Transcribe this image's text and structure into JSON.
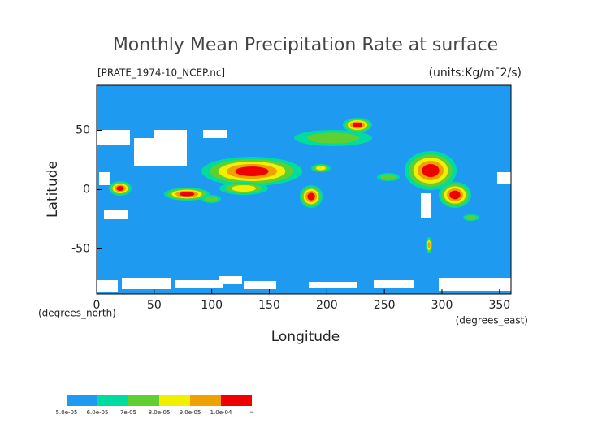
{
  "chart_data": {
    "type": "contour-map",
    "title": "Monthly Mean Precipitation Rate at surface",
    "file_label": "[PRATE_1974-10_NCEP.nc]",
    "units_label": "(units:Kg/m¯2/s)",
    "x_label": "Longitude",
    "y_label": "Latitude",
    "x_units": "(degrees_east)",
    "y_units": "(degrees_north)",
    "xlim": [
      0,
      360
    ],
    "ylim": [
      -88,
      88
    ],
    "xticks": [
      0,
      50,
      100,
      150,
      200,
      250,
      300,
      350
    ],
    "yticks": [
      -50,
      0,
      50
    ],
    "background_color": "#1e9bf0",
    "colorbar": {
      "labels": [
        "5.0e-05",
        "6.0e-05",
        "7e-05",
        "8.0e-05",
        "9.0e-05",
        "1.0e-04",
        "∞"
      ],
      "colors": [
        "#1e9bf0",
        "#00dca0",
        "#60d030",
        "#f0f000",
        "#f0a000",
        "#f00000"
      ]
    }
  }
}
